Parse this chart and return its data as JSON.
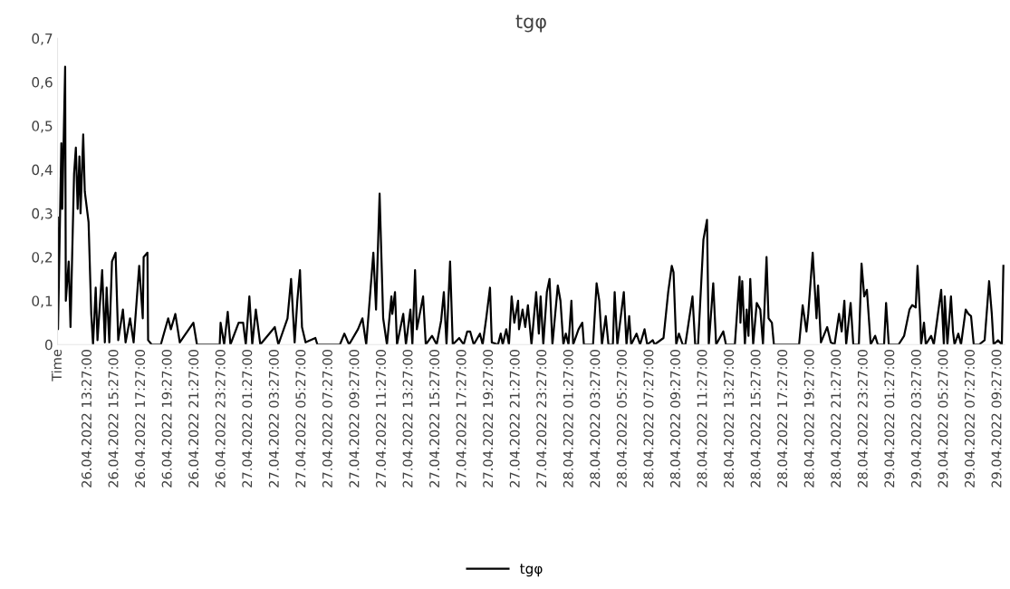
{
  "chart_data": {
    "type": "line",
    "title": "tgφ",
    "legend": "bottom",
    "ylim": [
      0,
      0.7
    ],
    "yticks": [
      {
        "value": 0,
        "label": "0"
      },
      {
        "value": 0.1,
        "label": "0,1"
      },
      {
        "value": 0.2,
        "label": "0,2"
      },
      {
        "value": 0.3,
        "label": "0,3"
      },
      {
        "value": 0.4,
        "label": "0,4"
      },
      {
        "value": 0.5,
        "label": "0,5"
      },
      {
        "value": 0.6,
        "label": "0,6"
      },
      {
        "value": 0.7,
        "label": "0,7"
      }
    ],
    "xlim": [
      "2022-04-26T11:12",
      "2022-04-29T10:00"
    ],
    "xticks": [
      {
        "value": "2022-04-26T11:13",
        "label": "Time"
      },
      {
        "value": "2022-04-26T13:27",
        "label": "26.04.2022 13:27:00"
      },
      {
        "value": "2022-04-26T15:27",
        "label": "26.04.2022 15:27:00"
      },
      {
        "value": "2022-04-26T17:27",
        "label": "26.04.2022 17:27:00"
      },
      {
        "value": "2022-04-26T19:27",
        "label": "26.04.2022 19:27:00"
      },
      {
        "value": "2022-04-26T21:27",
        "label": "26.04.2022 21:27:00"
      },
      {
        "value": "2022-04-26T23:27",
        "label": "26.04.2022 23:27:00"
      },
      {
        "value": "2022-04-27T01:27",
        "label": "27.04.2022 01:27:00"
      },
      {
        "value": "2022-04-27T03:27",
        "label": "27.04.2022 03:27:00"
      },
      {
        "value": "2022-04-27T05:27",
        "label": "27.04.2022 05:27:00"
      },
      {
        "value": "2022-04-27T07:27",
        "label": "27.04.2022 07:27:00"
      },
      {
        "value": "2022-04-27T09:27",
        "label": "27.04.2022 09:27:00"
      },
      {
        "value": "2022-04-27T11:27",
        "label": "27.04.2022 11:27:00"
      },
      {
        "value": "2022-04-27T13:27",
        "label": "27.04.2022 13:27:00"
      },
      {
        "value": "2022-04-27T15:27",
        "label": "27.04.2022 15:27:00"
      },
      {
        "value": "2022-04-27T17:27",
        "label": "27.04.2022 17:27:00"
      },
      {
        "value": "2022-04-27T19:27",
        "label": "27.04.2022 19:27:00"
      },
      {
        "value": "2022-04-27T21:27",
        "label": "27.04.2022 21:27:00"
      },
      {
        "value": "2022-04-27T23:27",
        "label": "27.04.2022 23:27:00"
      },
      {
        "value": "2022-04-28T01:27",
        "label": "28.04.2022 01:27:00"
      },
      {
        "value": "2022-04-28T03:27",
        "label": "28.04.2022 03:27:00"
      },
      {
        "value": "2022-04-28T05:27",
        "label": "28.04.2022 05:27:00"
      },
      {
        "value": "2022-04-28T07:27",
        "label": "28.04.2022 07:27:00"
      },
      {
        "value": "2022-04-28T09:27",
        "label": "28.04.2022 09:27:00"
      },
      {
        "value": "2022-04-28T11:27",
        "label": "28.04.2022 11:27:00"
      },
      {
        "value": "2022-04-28T13:27",
        "label": "28.04.2022 13:27:00"
      },
      {
        "value": "2022-04-28T15:27",
        "label": "28.04.2022 15:27:00"
      },
      {
        "value": "2022-04-28T17:27",
        "label": "28.04.2022 17:27:00"
      },
      {
        "value": "2022-04-28T19:27",
        "label": "28.04.2022 19:27:00"
      },
      {
        "value": "2022-04-28T21:27",
        "label": "28.04.2022 21:27:00"
      },
      {
        "value": "2022-04-28T23:27",
        "label": "28.04.2022 23:27:00"
      },
      {
        "value": "2022-04-29T01:27",
        "label": "29.04.2022 01:27:00"
      },
      {
        "value": "2022-04-29T03:27",
        "label": "29.04.2022 03:27:00"
      },
      {
        "value": "2022-04-29T05:27",
        "label": "29.04.2022 05:27:00"
      },
      {
        "value": "2022-04-29T07:27",
        "label": "29.04.2022 07:27:00"
      },
      {
        "value": "2022-04-29T09:27",
        "label": "29.04.2022 09:27:00"
      }
    ],
    "series": [
      {
        "name": "tgφ",
        "color": "#000000",
        "x": [
          "2022-04-26T11:13",
          "2022-04-26T11:14",
          "2022-04-26T11:29",
          "2022-04-26T11:33",
          "2022-04-26T11:46",
          "2022-04-26T11:49",
          "2022-04-26T12:02",
          "2022-04-26T12:10",
          "2022-04-26T12:26",
          "2022-04-26T12:34",
          "2022-04-26T12:42",
          "2022-04-26T12:50",
          "2022-04-26T12:55",
          "2022-04-26T13:07",
          "2022-04-26T13:14",
          "2022-04-26T13:31",
          "2022-04-26T13:43",
          "2022-04-26T13:51",
          "2022-04-26T14:03",
          "2022-04-26T14:11",
          "2022-04-26T14:32",
          "2022-04-26T14:44",
          "2022-04-26T14:52",
          "2022-04-26T15:04",
          "2022-04-26T15:16",
          "2022-04-26T15:32",
          "2022-04-26T15:44",
          "2022-04-26T16:05",
          "2022-04-26T16:17",
          "2022-04-26T16:37",
          "2022-04-26T16:53",
          "2022-04-26T17:18",
          "2022-04-26T17:34",
          "2022-04-26T17:38",
          "2022-04-26T17:55",
          "2022-04-26T17:58",
          "2022-04-26T18:14",
          "2022-04-26T18:55",
          "2022-04-26T19:28",
          "2022-04-26T19:40",
          "2022-04-26T20:00",
          "2022-04-26T20:20",
          "2022-04-26T21:21",
          "2022-04-26T21:37",
          "2022-04-26T23:19",
          "2022-04-26T23:23",
          "2022-04-26T23:39",
          "2022-04-26T23:55",
          "2022-04-27T00:07",
          "2022-04-27T00:44",
          "2022-04-27T01:04",
          "2022-04-27T01:16",
          "2022-04-27T01:32",
          "2022-04-27T01:45",
          "2022-04-27T02:01",
          "2022-04-27T02:21",
          "2022-04-27T03:26",
          "2022-04-27T03:42",
          "2022-04-27T04:23",
          "2022-04-27T04:39",
          "2022-04-27T04:55",
          "2022-04-27T05:07",
          "2022-04-27T05:19",
          "2022-04-27T05:28",
          "2022-04-27T05:44",
          "2022-04-27T06:28",
          "2022-04-27T06:37",
          "2022-04-27T08:18",
          "2022-04-27T08:38",
          "2022-04-27T08:59",
          "2022-04-27T09:39",
          "2022-04-27T09:59",
          "2022-04-27T10:16",
          "2022-04-27T10:48",
          "2022-04-27T11:00",
          "2022-04-27T11:16",
          "2022-04-27T11:32",
          "2022-04-27T11:49",
          "2022-04-27T12:09",
          "2022-04-27T12:13",
          "2022-04-27T12:25",
          "2022-04-27T12:34",
          "2022-04-27T12:50",
          "2022-04-27T13:02",
          "2022-04-27T13:14",
          "2022-04-27T13:34",
          "2022-04-27T13:43",
          "2022-04-27T13:55",
          "2022-04-27T14:03",
          "2022-04-27T14:31",
          "2022-04-27T14:43",
          "2022-04-27T15:11",
          "2022-04-27T15:32",
          "2022-04-27T15:52",
          "2022-04-27T16:04",
          "2022-04-27T16:16",
          "2022-04-27T16:32",
          "2022-04-27T16:44",
          "2022-04-27T17:13",
          "2022-04-27T17:33",
          "2022-04-27T17:49",
          "2022-04-27T18:02",
          "2022-04-27T18:18",
          "2022-04-27T18:46",
          "2022-04-27T18:58",
          "2022-04-27T19:14",
          "2022-04-27T19:31",
          "2022-04-27T19:39",
          "2022-04-27T20:07",
          "2022-04-27T20:19",
          "2022-04-27T20:28",
          "2022-04-27T20:44",
          "2022-04-27T20:56",
          "2022-04-27T21:08",
          "2022-04-27T21:20",
          "2022-04-27T21:37",
          "2022-04-27T21:41",
          "2022-04-27T21:57",
          "2022-04-27T22:09",
          "2022-04-27T22:21",
          "2022-04-27T22:37",
          "2022-04-27T22:58",
          "2022-04-27T23:10",
          "2022-04-27T23:18",
          "2022-04-27T23:30",
          "2022-04-27T23:46",
          "2022-04-27T23:58",
          "2022-04-28T00:11",
          "2022-04-28T00:35",
          "2022-04-28T00:47",
          "2022-04-28T01:00",
          "2022-04-28T01:11",
          "2022-04-28T01:23",
          "2022-04-28T01:36",
          "2022-04-28T01:44",
          "2022-04-28T02:08",
          "2022-04-28T02:25",
          "2022-04-28T02:32",
          "2022-04-28T03:13",
          "2022-04-28T03:29",
          "2022-04-28T03:41",
          "2022-04-28T03:53",
          "2022-04-28T04:10",
          "2022-04-28T04:22",
          "2022-04-28T04:42",
          "2022-04-28T04:50",
          "2022-04-28T05:02",
          "2022-04-28T05:31",
          "2022-04-28T05:43",
          "2022-04-28T05:55",
          "2022-04-28T06:04",
          "2022-04-28T06:28",
          "2022-04-28T06:44",
          "2022-04-28T07:04",
          "2022-04-28T07:16",
          "2022-04-28T07:41",
          "2022-04-28T07:49",
          "2022-04-28T08:29",
          "2022-04-28T08:50",
          "2022-04-28T09:06",
          "2022-04-28T09:14",
          "2022-04-28T09:26",
          "2022-04-28T09:38",
          "2022-04-28T09:55",
          "2022-04-28T10:07",
          "2022-04-28T10:39",
          "2022-04-28T10:51",
          "2022-04-28T11:04",
          "2022-04-28T11:28",
          "2022-04-28T11:44",
          "2022-04-28T11:52",
          "2022-04-28T12:12",
          "2022-04-28T12:25",
          "2022-04-28T12:57",
          "2022-04-28T13:09",
          "2022-04-28T13:49",
          "2022-04-28T14:10",
          "2022-04-28T14:14",
          "2022-04-28T14:22",
          "2022-04-28T14:34",
          "2022-04-28T14:42",
          "2022-04-28T14:50",
          "2022-04-28T14:58",
          "2022-04-28T15:11",
          "2022-04-28T15:27",
          "2022-04-28T15:43",
          "2022-04-28T15:55",
          "2022-04-28T16:11",
          "2022-04-28T16:20",
          "2022-04-28T16:35",
          "2022-04-28T16:44",
          "2022-04-28T18:37",
          "2022-04-28T18:53",
          "2022-04-28T19:10",
          "2022-04-28T19:18",
          "2022-04-28T19:38",
          "2022-04-28T19:55",
          "2022-04-28T20:02",
          "2022-04-28T20:15",
          "2022-04-28T20:43",
          "2022-04-28T20:59",
          "2022-04-28T21:16",
          "2022-04-28T21:36",
          "2022-04-28T21:48",
          "2022-04-28T22:00",
          "2022-04-28T22:08",
          "2022-04-28T22:28",
          "2022-04-28T22:40",
          "2022-04-28T23:05",
          "2022-04-28T23:17",
          "2022-04-28T23:29",
          "2022-04-28T23:41",
          "2022-04-28T23:58",
          "2022-04-29T00:18",
          "2022-04-29T00:30",
          "2022-04-29T00:58",
          "2022-04-29T01:07",
          "2022-04-29T01:19",
          "2022-04-29T02:03",
          "2022-04-29T02:28",
          "2022-04-29T02:52",
          "2022-04-29T03:04",
          "2022-04-29T03:20",
          "2022-04-29T03:28",
          "2022-04-29T03:41",
          "2022-04-29T03:44",
          "2022-04-29T03:57",
          "2022-04-29T04:05",
          "2022-04-29T04:29",
          "2022-04-29T04:41",
          "2022-04-29T05:14",
          "2022-04-29T05:26",
          "2022-04-29T05:30",
          "2022-04-29T05:42",
          "2022-04-29T05:58",
          "2022-04-29T06:07",
          "2022-04-29T06:14",
          "2022-04-29T06:31",
          "2022-04-29T06:43",
          "2022-04-29T07:04",
          "2022-04-29T07:16",
          "2022-04-29T07:28",
          "2022-04-29T07:40",
          "2022-04-29T08:04",
          "2022-04-29T08:29",
          "2022-04-29T08:49",
          "2022-04-29T09:01",
          "2022-04-29T09:09",
          "2022-04-29T09:29",
          "2022-04-29T09:46",
          "2022-04-29T09:53"
        ],
        "values": [
          0.29,
          0.035,
          0.46,
          0.31,
          0.635,
          0.1,
          0.19,
          0.04,
          0.39,
          0.45,
          0.31,
          0.43,
          0.3,
          0.48,
          0.35,
          0.28,
          0.07,
          0,
          0.13,
          0.01,
          0.17,
          0.005,
          0.13,
          0.005,
          0.19,
          0.21,
          0.01,
          0.08,
          0.005,
          0.06,
          0.005,
          0.18,
          0.06,
          0.2,
          0.21,
          0.01,
          0,
          0,
          0.06,
          0.035,
          0.07,
          0.005,
          0.05,
          0,
          0,
          0.05,
          0,
          0.075,
          0,
          0.05,
          0.05,
          0,
          0.11,
          0,
          0.08,
          0,
          0.04,
          0,
          0.06,
          0.15,
          0.005,
          0.1,
          0.17,
          0.04,
          0.005,
          0.015,
          0,
          0,
          0.025,
          0,
          0.035,
          0.06,
          0,
          0.21,
          0.08,
          0.345,
          0.06,
          0,
          0.11,
          0.07,
          0.12,
          0,
          0.04,
          0.07,
          0,
          0.08,
          0,
          0.17,
          0.035,
          0.11,
          0,
          0.02,
          0,
          0.055,
          0.12,
          0,
          0.19,
          0,
          0.015,
          0,
          0.03,
          0.03,
          0,
          0.025,
          0,
          0.06,
          0.13,
          0.005,
          0,
          0.025,
          0,
          0.035,
          0,
          0.11,
          0.05,
          0.1,
          0.035,
          0.08,
          0.04,
          0.09,
          0,
          0.12,
          0.025,
          0.11,
          0,
          0.12,
          0.15,
          0,
          0.135,
          0.1,
          0,
          0.025,
          0,
          0.1,
          0,
          0.035,
          0.05,
          0,
          0,
          0.14,
          0.1,
          0,
          0.065,
          0,
          0,
          0.12,
          0,
          0.12,
          0,
          0.065,
          0,
          0.025,
          0,
          0.035,
          0,
          0.01,
          0,
          0.015,
          0.12,
          0.18,
          0.165,
          0,
          0.025,
          0,
          0,
          0.11,
          0,
          0,
          0.24,
          0.285,
          0,
          0.14,
          0,
          0.03,
          0,
          0,
          0.155,
          0.05,
          0.145,
          0,
          0.08,
          0.02,
          0.15,
          0,
          0.095,
          0.08,
          0,
          0.2,
          0.06,
          0.05,
          0,
          0,
          0.09,
          0.03,
          0.07,
          0.21,
          0.06,
          0.135,
          0.005,
          0.04,
          0.005,
          0,
          0.07,
          0.03,
          0.1,
          0,
          0.095,
          0,
          0,
          0.185,
          0.11,
          0.125,
          0,
          0.02,
          0,
          0,
          0.095,
          0,
          0,
          0.02,
          0.08,
          0.09,
          0.085,
          0.18,
          0.05,
          0,
          0.05,
          0,
          0.02,
          0,
          0.125,
          0,
          0.11,
          0,
          0.11,
          0.03,
          0,
          0.025,
          0,
          0.08,
          0.07,
          0.065,
          0,
          0,
          0.01,
          0.145,
          0.07,
          0,
          0.01,
          0,
          0.18
        ]
      }
    ]
  }
}
